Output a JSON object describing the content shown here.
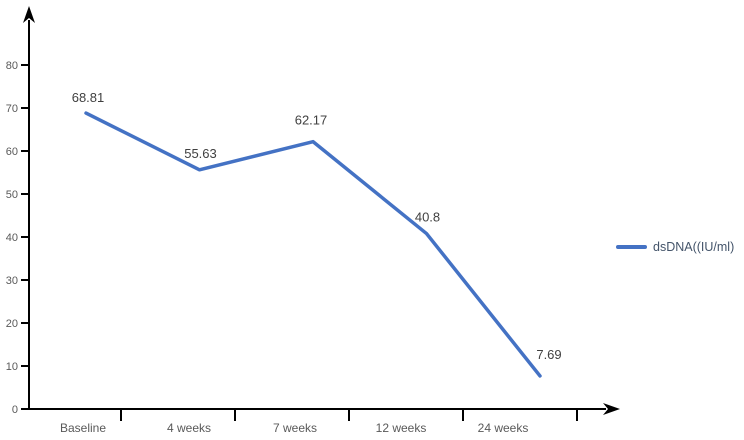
{
  "chart_data": {
    "type": "line",
    "title": "",
    "xlabel": "",
    "ylabel": "",
    "categories": [
      "Baseline",
      "4 weeks",
      "7 weeks",
      "12 weeks",
      "24 weeks"
    ],
    "series": [
      {
        "name": "dsDNA((IU/ml)",
        "values": [
          68.81,
          55.63,
          62.17,
          40.8,
          7.69
        ],
        "color": "#4472C4"
      }
    ],
    "data_labels": [
      "68.81",
      "55.63",
      "62.17",
      "40.8",
      "7.69"
    ],
    "ylim": [
      0,
      80
    ],
    "ytick_step": 10,
    "ytick_labels": [
      "0",
      "10",
      "20",
      "30",
      "40",
      "50",
      "60",
      "70",
      "80"
    ],
    "grid": false,
    "legend_position": "right",
    "colors": {
      "axis": "#000000",
      "tick_label": "#595959",
      "category_label": "#595959",
      "data_label": "#404040",
      "legend_text": "#44546A",
      "background": "#ffffff"
    }
  }
}
